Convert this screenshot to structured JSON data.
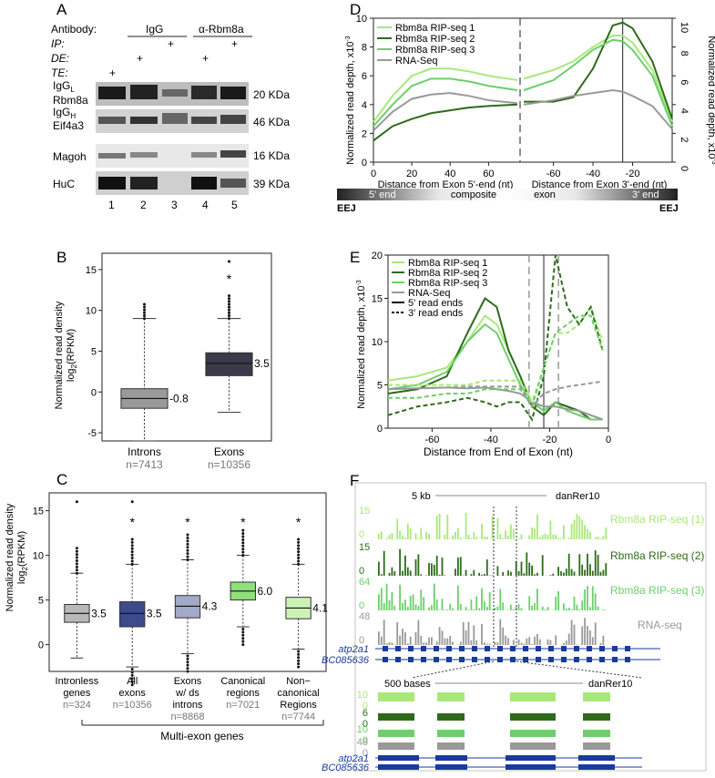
{
  "panel_labels": {
    "A": "A",
    "B": "B",
    "C": "C",
    "D": "D",
    "E": "E",
    "F": "F"
  },
  "panelA": {
    "antibody_label": "Antibody:",
    "ip_label": "IP:",
    "de_label": "DE:",
    "te_label": "TE:",
    "group_igg": "IgG",
    "group_rbm8a": "α-Rbm8a",
    "blots": [
      {
        "label": "Rbm8a",
        "sublabel": "IgG",
        "sub_index": "L",
        "kda": "20 KDa"
      },
      {
        "label": "Eif4a3",
        "sublabel": "IgG",
        "sub_index": "H",
        "kda": "46 KDa"
      },
      {
        "label": "Magoh",
        "kda": "16 KDa"
      },
      {
        "label": "HuC",
        "kda": "39 KDa"
      }
    ],
    "lanes": [
      "1",
      "2",
      "3",
      "4",
      "5"
    ],
    "plus": "+"
  },
  "panelB": {
    "ylabel1": "Normalized read density",
    "ylabel2": "log",
    "ylabel2_sub": "2",
    "ylabel2_rest": "(RPKM)",
    "yticks": [
      "-5",
      "0",
      "5",
      "10",
      "15"
    ],
    "categories": [
      {
        "name": "Introns",
        "n": "n=7413",
        "median_label": "-0.8",
        "color": "#9a9a9a"
      },
      {
        "name": "Exons",
        "n": "n=10356",
        "median_label": "3.5",
        "color": "#3a3a4a"
      }
    ],
    "star": "*"
  },
  "panelC": {
    "ylabel1": "Normalized read density",
    "ylabel2": "log",
    "ylabel2_sub": "2",
    "ylabel2_rest": "(RPKM)",
    "yticks": [
      "0",
      "5",
      "10",
      "15"
    ],
    "categories": [
      {
        "line1": "Intronless",
        "line2": "genes",
        "n": "n=324",
        "median_label": "3.5",
        "color": "#b8b8b8"
      },
      {
        "line1": "All",
        "line2": "exons",
        "n": "n=10356",
        "median_label": "3.5",
        "color": "#3d4a8c"
      },
      {
        "line1": "Exons",
        "line2": "w/ ds",
        "line3": "introns",
        "n": "n=8868",
        "median_label": "4.3",
        "color": "#a3a9c8"
      },
      {
        "line1": "Canonical",
        "line2": "regions",
        "n": "n=7021",
        "median_label": "6.0",
        "color": "#8fe07a"
      },
      {
        "line1": "Non−",
        "line2": "canonical",
        "line3": "Regions",
        "n": "n=7744",
        "median_label": "4.1",
        "color": "#cdf2b8"
      }
    ],
    "group_label": "Multi-exon genes",
    "star": "*"
  },
  "panelD": {
    "legend": [
      "Rbm8a RIP-seq 1",
      "Rbm8a RIP-seq 2",
      "Rbm8a RIP-seq 3",
      "RNA-Seq"
    ],
    "colors": [
      "#a8e878",
      "#2d6b1a",
      "#6ccf6a",
      "#999999"
    ],
    "ylabel_left": "Normalized read depth, x10",
    "ylabel_right": "Normalized read depth, x10",
    "exp": "-3",
    "yticks": [
      "0",
      "2",
      "4",
      "6",
      "8",
      "10"
    ],
    "xticks_left": [
      "0",
      "20",
      "40",
      "60"
    ],
    "xticks_right": [
      "-60",
      "-40",
      "-20"
    ],
    "xlabel_left": "Distance from Exon 5'-end (nt)",
    "xlabel_right": "Distance from Exon 3'-end (nt)",
    "bar_left": "5' end",
    "bar_mid1": "composite",
    "bar_mid2": "exon",
    "bar_right": "3' end",
    "eej": "EEJ"
  },
  "panelE": {
    "legend": [
      "Rbm8a RIP-seq 1",
      "Rbm8a RIP-seq 2",
      "Rbm8a RIP-seq 3",
      "RNA-Seq",
      "5' read ends",
      "3' read ends"
    ],
    "ylabel": "Normalized read depth, x10",
    "exp": "-3",
    "yticks": [
      "0",
      "5",
      "10",
      "15",
      "20"
    ],
    "xticks": [
      "-60",
      "-40",
      "-20",
      "0"
    ],
    "xlabel": "Distance from End of Exon (nt)"
  },
  "panelF": {
    "scale_top": "5 kb",
    "genome": "danRer10",
    "tracks": [
      {
        "label": "Rbm8a RIP-seq (1)",
        "max": "15",
        "zero": "0",
        "color": "#a8e878"
      },
      {
        "label": "Rbm8a RIP-seq (2)",
        "max": "15",
        "zero": "0",
        "color": "#2d6b1a"
      },
      {
        "label": "Rbm8a RIP-seq (3)",
        "max": "64",
        "zero": "0",
        "color": "#6ccf6a"
      },
      {
        "label": "RNA-seq",
        "max": "48",
        "zero": "0",
        "color": "#999999"
      }
    ],
    "genes": [
      "atp2a1",
      "BC085636"
    ],
    "scale_zoom": "500 bases",
    "zoom_tracks": [
      {
        "max": "10",
        "zero": "0"
      },
      {
        "max": "6",
        "zero": "0"
      },
      {
        "max": "10",
        "zero": "0"
      },
      {
        "max": "48",
        "zero": "0"
      }
    ]
  },
  "chart_data": [
    {
      "type": "box",
      "title": "B",
      "ylabel": "Normalized read density log2(RPKM)",
      "categories": [
        "Introns",
        "Exons"
      ],
      "ylim": [
        -6,
        17
      ],
      "series": [
        {
          "name": "Introns",
          "q1": -2.0,
          "median": -0.8,
          "q3": 0.4,
          "whisker_low": -6.0,
          "whisker_high": 9.0,
          "outliers_high": [
            9.5,
            10.5
          ]
        },
        {
          "name": "Exons",
          "q1": 2.0,
          "median": 3.5,
          "q3": 4.8,
          "whisker_low": -2.5,
          "whisker_high": 9.0,
          "outliers_high": [
            9.8,
            11,
            16
          ]
        }
      ]
    },
    {
      "type": "box",
      "title": "C",
      "ylabel": "Normalized read density log2(RPKM)",
      "categories": [
        "Intronless genes",
        "All exons",
        "Exons w/ ds introns",
        "Canonical regions",
        "Non-canonical Regions"
      ],
      "ylim": [
        -3,
        17
      ],
      "medians": [
        3.5,
        3.5,
        4.3,
        6.0,
        4.1
      ],
      "q1": [
        2.5,
        2.0,
        3.0,
        5.0,
        2.9
      ],
      "q3": [
        4.5,
        4.8,
        5.5,
        7.0,
        5.3
      ],
      "whisker_low": [
        -1.5,
        -2.5,
        -1.0,
        2.0,
        -0.5
      ],
      "whisker_high": [
        8.0,
        9.0,
        9.5,
        10.0,
        9.0
      ]
    },
    {
      "type": "line",
      "title": "D",
      "xlabel": [
        "Distance from Exon 5'-end (nt)",
        "Distance from Exon 3'-end (nt)"
      ],
      "ylabel": "Normalized read depth, x10-3",
      "ylim": [
        0,
        10
      ],
      "x_left": [
        0,
        10,
        20,
        30,
        40,
        50,
        60,
        75
      ],
      "x_right": [
        -75,
        -60,
        -50,
        -40,
        -30,
        -25,
        -20,
        -10,
        0
      ],
      "series": [
        {
          "name": "Rbm8a RIP-seq 1",
          "left": [
            2.8,
            4.6,
            6.0,
            6.5,
            6.5,
            6.3,
            6.0,
            5.7
          ],
          "right": [
            5.8,
            6.4,
            7.0,
            8.0,
            8.8,
            8.8,
            8.3,
            6.4,
            2.8
          ]
        },
        {
          "name": "Rbm8a RIP-seq 2",
          "left": [
            1.5,
            2.5,
            3.0,
            3.4,
            3.6,
            3.8,
            3.9,
            4.0
          ],
          "right": [
            4.2,
            4.2,
            4.5,
            6.5,
            9.5,
            9.7,
            9.3,
            7.0,
            3.0
          ]
        },
        {
          "name": "Rbm8a RIP-seq 3",
          "left": [
            2.5,
            4.0,
            5.3,
            5.8,
            5.8,
            5.6,
            5.3,
            5.0
          ],
          "right": [
            5.0,
            5.7,
            6.7,
            7.8,
            8.5,
            8.4,
            7.8,
            6.0,
            2.5
          ]
        },
        {
          "name": "RNA-Seq",
          "left": [
            2.2,
            3.5,
            4.4,
            4.7,
            4.8,
            4.6,
            4.3,
            4.1
          ],
          "right": [
            4.0,
            4.3,
            4.6,
            4.8,
            5.0,
            4.9,
            4.6,
            3.9,
            2.3
          ]
        }
      ]
    },
    {
      "type": "line",
      "title": "E",
      "xlabel": "Distance from End of Exon (nt)",
      "ylabel": "Normalized read depth, x10-3",
      "xlim": [
        -75,
        0
      ],
      "ylim": [
        0,
        20
      ],
      "x": [
        -75,
        -65,
        -55,
        -48,
        -42,
        -38,
        -34,
        -30,
        -26,
        -22,
        -18,
        -14,
        -10,
        -6,
        -2
      ],
      "series": [
        {
          "name": "Rbm8a RIP-seq 1 (5')",
          "values": [
            5.5,
            6,
            7,
            10,
            13,
            12,
            9,
            6,
            3,
            2,
            3,
            2.5,
            2,
            1.5,
            1
          ]
        },
        {
          "name": "Rbm8a RIP-seq 2 (5')",
          "values": [
            4,
            4.5,
            6,
            11,
            15,
            14,
            9,
            6,
            2.5,
            1.5,
            3,
            2.5,
            2,
            1,
            1
          ]
        },
        {
          "name": "Rbm8a RIP-seq 3 (5')",
          "values": [
            4.5,
            5,
            6.5,
            10,
            12,
            11,
            8,
            5,
            3,
            2,
            3,
            2,
            1.5,
            1,
            1
          ]
        },
        {
          "name": "RNA-Seq (5')",
          "values": [
            4.5,
            4.6,
            4.7,
            4.6,
            4.7,
            4.5,
            4.3,
            4,
            3,
            2.5,
            2.5,
            2.2,
            2,
            1.5,
            1
          ]
        },
        {
          "name": "Rbm8a RIP-seq 1 (3')",
          "values": [
            5,
            5,
            5,
            5,
            5.5,
            5.5,
            5.5,
            5.5,
            3,
            7,
            11,
            11,
            12,
            14,
            10
          ]
        },
        {
          "name": "Rbm8a RIP-seq 2 (3')",
          "values": [
            1.5,
            2.5,
            3,
            3.5,
            3,
            2.5,
            3,
            3,
            1,
            6,
            20,
            14,
            12,
            14,
            9
          ]
        },
        {
          "name": "Rbm8a RIP-seq 3 (3')",
          "values": [
            3.5,
            3.5,
            4,
            4,
            4.5,
            4.5,
            4.5,
            4.5,
            2.5,
            7,
            11,
            12,
            13,
            13,
            9
          ]
        },
        {
          "name": "RNA-Seq (3')",
          "values": [
            4.5,
            4.6,
            4.7,
            4.8,
            4.8,
            4.8,
            4.8,
            4.8,
            2.5,
            4,
            4.5,
            4.8,
            5,
            5.2,
            5.4
          ]
        }
      ]
    }
  ]
}
